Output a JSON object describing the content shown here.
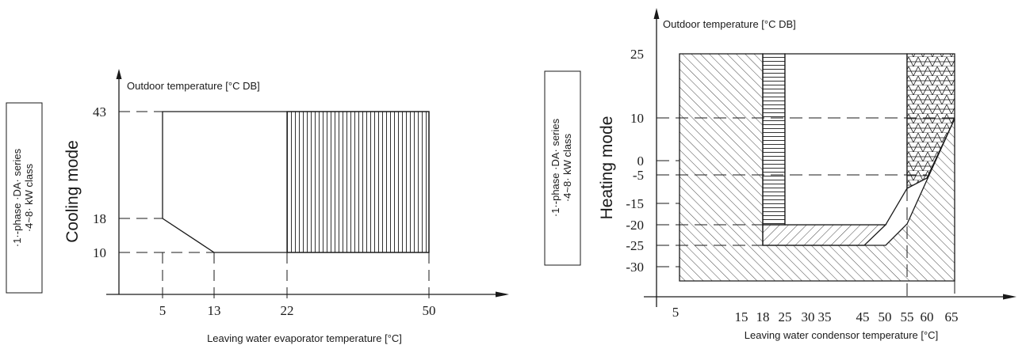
{
  "cooling": {
    "side_label_line1": "·1·-phase ·DA· series",
    "side_label_line2": "·4~8· kW class",
    "mode_label": "Cooling mode",
    "y_axis_title": "Outdoor temperature [°C DB]",
    "x_axis_title": "Leaving water evaporator temperature [°C]",
    "y_ticks": [
      "43",
      "18",
      "10"
    ],
    "x_ticks": [
      "5",
      "13",
      "22",
      "50"
    ]
  },
  "heating": {
    "side_label_line1": "·1·-phase ·DA· series",
    "side_label_line2": "·4~8· kW class",
    "mode_label": "Heating mode",
    "y_axis_title": "Outdoor temperature [°C DB]",
    "x_axis_title": "Leaving water condensor temperature [°C]",
    "y_ticks": [
      "25",
      "10",
      "0",
      "-5",
      "-15",
      "-20",
      "-25",
      "-30"
    ],
    "x_ticks": [
      "5",
      "15",
      "18",
      "25",
      "30",
      "35",
      "45",
      "50",
      "55",
      "60",
      "65"
    ]
  },
  "colors": {
    "line": "#1a1a1a",
    "background": "#ffffff"
  }
}
